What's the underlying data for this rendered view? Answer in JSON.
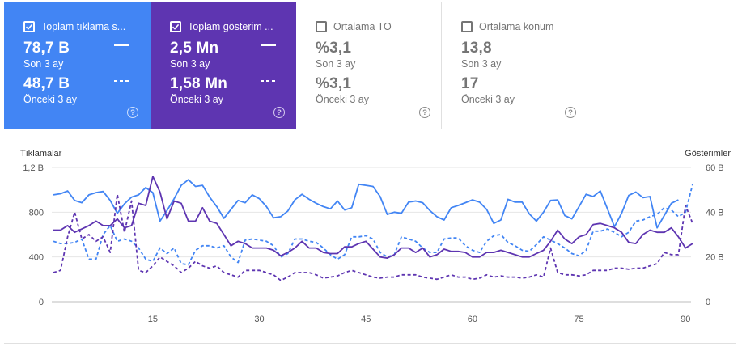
{
  "colors": {
    "clicks": "#4285f4",
    "impressions": "#5e35b1",
    "grid": "#e6e6e6",
    "inactive": "#757575"
  },
  "cards": [
    {
      "title": "Toplam tıklama s...",
      "checked": true,
      "primary_value": "78,7 B",
      "primary_label": "Son 3 ay",
      "secondary_value": "48,7 B",
      "secondary_label": "Önceki 3 ay",
      "help": "?"
    },
    {
      "title": "Toplam gösterim ...",
      "checked": true,
      "primary_value": "2,5 Mn",
      "primary_label": "Son 3 ay",
      "secondary_value": "1,58 Mn",
      "secondary_label": "Önceki 3 ay",
      "help": "?"
    },
    {
      "title": "Ortalama TO",
      "checked": false,
      "primary_value": "%3,1",
      "primary_label": "Son 3 ay",
      "secondary_value": "%3,1",
      "secondary_label": "Önceki 3 ay",
      "help": "?"
    },
    {
      "title": "Ortalama konum",
      "checked": false,
      "primary_value": "13,8",
      "primary_label": "Son 3 ay",
      "secondary_value": "17",
      "secondary_label": "Önceki 3 ay",
      "help": "?"
    }
  ],
  "chart_data": {
    "type": "line",
    "ylabel_left": "Tıklamalar",
    "ylabel_right": "Gösterimler",
    "y_left_ticks": [
      "0",
      "400",
      "800",
      "1,2 B"
    ],
    "y_right_ticks": [
      "0",
      "20 B",
      "40 B",
      "60 B"
    ],
    "ylim_left": [
      0,
      1200
    ],
    "ylim_right": [
      0,
      60000
    ],
    "xlim": [
      1,
      91
    ],
    "x_ticks": [
      15,
      30,
      45,
      60,
      75,
      90
    ],
    "grid": true,
    "legend": "none",
    "series": [
      {
        "metric": "clicks",
        "period": "current",
        "axis": "left",
        "style": "solid",
        "color": "#4285f4",
        "values": [
          955,
          965,
          990,
          905,
          885,
          955,
          975,
          985,
          905,
          790,
          875,
          935,
          955,
          1020,
          975,
          720,
          815,
          920,
          1040,
          1090,
          1030,
          1040,
          935,
          850,
          745,
          825,
          905,
          885,
          955,
          920,
          850,
          750,
          760,
          810,
          910,
          960,
          915,
          880,
          850,
          830,
          900,
          820,
          840,
          1050,
          1040,
          1030,
          940,
          780,
          800,
          790,
          890,
          900,
          885,
          815,
          760,
          730,
          840,
          860,
          885,
          910,
          890,
          825,
          700,
          730,
          915,
          890,
          890,
          785,
          720,
          800,
          905,
          910,
          770,
          740,
          850,
          960,
          940,
          990,
          830,
          670,
          790,
          950,
          980,
          930,
          940,
          660,
          770,
          880,
          910
        ]
      },
      {
        "metric": "clicks",
        "period": "previous",
        "axis": "left",
        "style": "dash",
        "color": "#4285f4",
        "values": [
          540,
          520,
          520,
          530,
          560,
          380,
          380,
          600,
          680,
          540,
          560,
          540,
          480,
          380,
          360,
          480,
          430,
          480,
          340,
          330,
          460,
          500,
          500,
          480,
          500,
          400,
          350,
          550,
          560,
          550,
          540,
          500,
          400,
          430,
          560,
          560,
          540,
          530,
          480,
          420,
          380,
          420,
          580,
          580,
          590,
          560,
          440,
          400,
          420,
          580,
          560,
          540,
          480,
          440,
          440,
          560,
          570,
          570,
          500,
          460,
          440,
          540,
          590,
          600,
          530,
          500,
          460,
          450,
          510,
          580,
          550,
          520,
          480,
          430,
          410,
          460,
          630,
          630,
          650,
          620,
          580,
          620,
          720,
          730,
          760,
          780,
          840,
          820,
          760,
          800,
          1050
        ]
      },
      {
        "metric": "impressions",
        "period": "current",
        "axis": "right",
        "style": "solid",
        "color": "#5e35b1",
        "values": [
          32000,
          32000,
          34000,
          31000,
          32500,
          34000,
          36000,
          34000,
          34000,
          37000,
          33000,
          34000,
          44000,
          43000,
          56000,
          49000,
          37000,
          45000,
          44000,
          36000,
          36000,
          42000,
          36000,
          35000,
          30000,
          25000,
          27000,
          26000,
          24000,
          24000,
          24000,
          23000,
          20500,
          22000,
          24000,
          27000,
          24000,
          24000,
          22000,
          21500,
          21500,
          24500,
          24500,
          26000,
          27000,
          23500,
          20000,
          19500,
          21000,
          24000,
          24000,
          22000,
          24000,
          20000,
          21000,
          23500,
          22500,
          22500,
          22000,
          20000,
          20000,
          22000,
          22000,
          23000,
          22000,
          21000,
          20000,
          20000,
          21500,
          23000,
          27000,
          32000,
          28000,
          26000,
          29000,
          30000,
          34500,
          35000,
          34000,
          33000,
          31000,
          26500,
          26000,
          30000,
          32000,
          31000,
          31000,
          33000,
          29000,
          24000,
          26000
        ]
      },
      {
        "metric": "impressions",
        "period": "previous",
        "axis": "right",
        "style": "dash",
        "color": "#5e35b1",
        "values": [
          13000,
          14000,
          29000,
          40000,
          28000,
          30000,
          27000,
          29000,
          22000,
          48000,
          31000,
          45000,
          14000,
          13000,
          16000,
          20000,
          18000,
          16000,
          13000,
          15000,
          18000,
          16000,
          15000,
          16000,
          13000,
          12000,
          11000,
          14000,
          14000,
          14000,
          13000,
          12000,
          9500,
          11000,
          13000,
          13000,
          13000,
          12000,
          10500,
          11000,
          11500,
          13000,
          14000,
          13000,
          12000,
          11000,
          10500,
          11000,
          11000,
          12000,
          12000,
          12000,
          11000,
          10500,
          10000,
          11000,
          12000,
          11000,
          11000,
          10000,
          10500,
          12000,
          11000,
          11500,
          11000,
          11000,
          10500,
          11000,
          12000,
          11000,
          24000,
          13000,
          12000,
          12000,
          11500,
          12000,
          14000,
          14000,
          14000,
          15000,
          15000,
          14500,
          15000,
          15000,
          16000,
          17000,
          22000,
          21000,
          21000,
          43000,
          35000
        ]
      }
    ]
  }
}
